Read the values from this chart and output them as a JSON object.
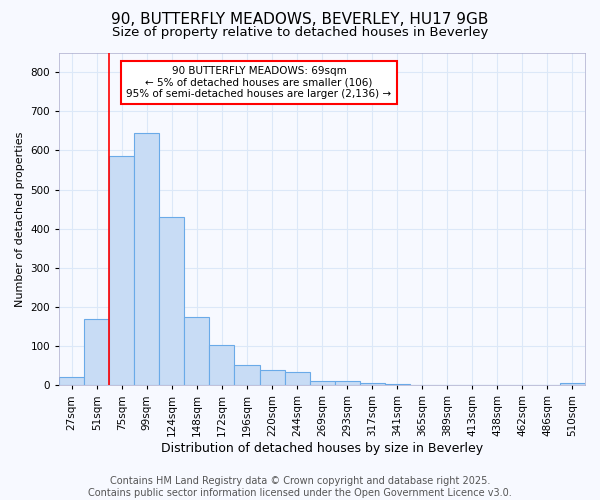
{
  "title1": "90, BUTTERFLY MEADOWS, BEVERLEY, HU17 9GB",
  "title2": "Size of property relative to detached houses in Beverley",
  "xlabel": "Distribution of detached houses by size in Beverley",
  "ylabel": "Number of detached properties",
  "bar_values": [
    20,
    170,
    585,
    645,
    430,
    175,
    102,
    52,
    40,
    33,
    10,
    12,
    5,
    3,
    2,
    1,
    1,
    0,
    0,
    0,
    5
  ],
  "bin_labels": [
    "27sqm",
    "51sqm",
    "75sqm",
    "99sqm",
    "124sqm",
    "148sqm",
    "172sqm",
    "196sqm",
    "220sqm",
    "244sqm",
    "269sqm",
    "293sqm",
    "317sqm",
    "341sqm",
    "365sqm",
    "389sqm",
    "413sqm",
    "438sqm",
    "462sqm",
    "486sqm",
    "510sqm"
  ],
  "bar_color": "#c8dcf5",
  "bar_edge_color": "#6aaae8",
  "annotation_box_text": "90 BUTTERFLY MEADOWS: 69sqm\n← 5% of detached houses are smaller (106)\n95% of semi-detached houses are larger (2,136) →",
  "red_line_bin_index": 2,
  "ylim": [
    0,
    850
  ],
  "yticks": [
    0,
    100,
    200,
    300,
    400,
    500,
    600,
    700,
    800
  ],
  "background_color": "#f7f9ff",
  "grid_color": "#dce8f8",
  "footer_text": "Contains HM Land Registry data © Crown copyright and database right 2025.\nContains public sector information licensed under the Open Government Licence v3.0.",
  "title1_fontsize": 11,
  "title2_fontsize": 9.5,
  "annotation_fontsize": 7.5,
  "ylabel_fontsize": 8,
  "xlabel_fontsize": 9,
  "footer_fontsize": 7,
  "tick_fontsize": 7.5
}
